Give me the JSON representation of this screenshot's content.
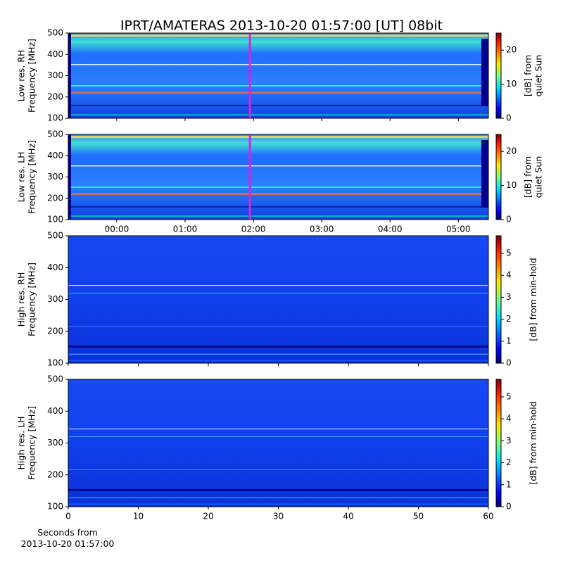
{
  "title": "IPRT/AMATERAS 2013-10-20 01:57:00 [UT]   08bit",
  "chart_data": [
    {
      "type": "spectrogram",
      "ylabel": [
        "Low res. RH",
        "Frequency [MHz]"
      ],
      "xlim": [
        -0.71,
        5.44
      ],
      "xticks": [
        0,
        1,
        2,
        3,
        4,
        5
      ],
      "xtick_labels": false,
      "ylim": [
        100,
        500
      ],
      "yticks": [
        100,
        200,
        300,
        400,
        500
      ],
      "cursor_x": 1.95,
      "cursor_color": "#e020e0",
      "colorbar": {
        "label": [
          "[dB] from",
          "quiet Sun"
        ],
        "clim": [
          0,
          25
        ],
        "ticks": [
          0,
          10,
          20
        ]
      }
    },
    {
      "type": "spectrogram",
      "ylabel": [
        "Low res. LH",
        "Frequency [MHz]"
      ],
      "xlim": [
        -0.71,
        5.44
      ],
      "xticks": [
        {
          "value": 0,
          "label": "00:00"
        },
        {
          "value": 1,
          "label": "01:00"
        },
        {
          "value": 2,
          "label": "02:00"
        },
        {
          "value": 3,
          "label": "03:00"
        },
        {
          "value": 4,
          "label": "04:00"
        },
        {
          "value": 5,
          "label": "05:00"
        }
      ],
      "xtick_labels": true,
      "ylim": [
        100,
        500
      ],
      "yticks": [
        100,
        200,
        300,
        400,
        500
      ],
      "cursor_x": 1.95,
      "cursor_color": "#e020e0",
      "colorbar": {
        "label": [
          "[dB] from",
          "quiet Sun"
        ],
        "clim": [
          0,
          25
        ],
        "ticks": [
          0,
          10,
          20
        ]
      }
    },
    {
      "type": "spectrogram",
      "ylabel": [
        "High res. RH",
        "Frequency [MHz]"
      ],
      "xlim": [
        0,
        60
      ],
      "xticks": [
        0,
        10,
        20,
        30,
        40,
        50,
        60
      ],
      "xtick_labels": false,
      "ylim": [
        100,
        500
      ],
      "yticks": [
        100,
        200,
        300,
        400,
        500
      ],
      "colorbar": {
        "label": [
          "[dB] from min-hold"
        ],
        "clim": [
          0,
          5.8
        ],
        "ticks": [
          0,
          1,
          2,
          3,
          4,
          5
        ]
      }
    },
    {
      "type": "spectrogram",
      "ylabel": [
        "High res. LH",
        "Frequency [MHz]"
      ],
      "xlim": [
        0,
        60
      ],
      "xticks": [
        0,
        10,
        20,
        30,
        40,
        50,
        60
      ],
      "xtick_labels": true,
      "xlabel": [
        "Seconds from",
        "2013-10-20 01:57:00"
      ],
      "ylim": [
        100,
        500
      ],
      "yticks": [
        100,
        200,
        300,
        400,
        500
      ],
      "colorbar": {
        "label": [
          "[dB] from min-hold"
        ],
        "clim": [
          0,
          5.8
        ],
        "ticks": [
          0,
          1,
          2,
          3,
          4,
          5
        ]
      }
    }
  ]
}
